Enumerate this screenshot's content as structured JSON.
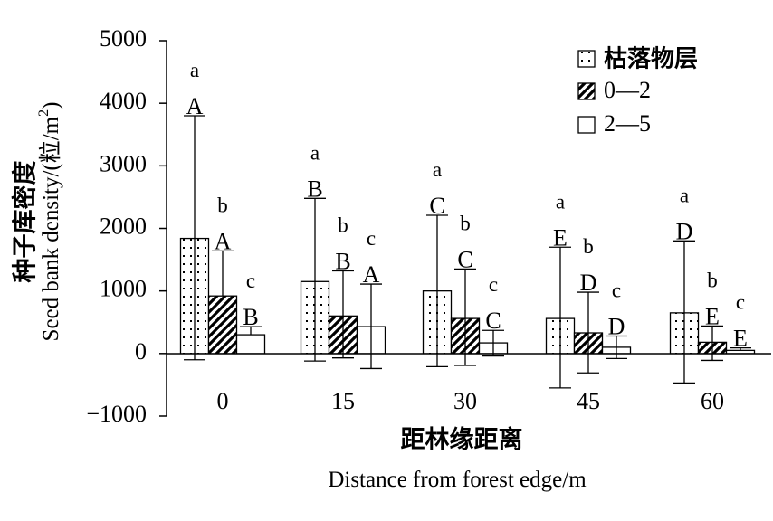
{
  "chart_data": {
    "type": "bar",
    "xlabel_cn": "距林缘距离",
    "xlabel_en": "Distance from forest edge/m",
    "ylabel_cn": "种子库密度",
    "ylabel_en_prefix": "Seed bank density/(粒/m",
    "ylabel_en_sup": "2",
    "ylabel_en_suffix": ")",
    "ylim": [
      -1000,
      5000
    ],
    "yticks": [
      -1000,
      0,
      1000,
      2000,
      3000,
      4000,
      5000
    ],
    "ytick_labels": [
      "−1000",
      "0",
      "1000",
      "2000",
      "3000",
      "4000",
      "5000"
    ],
    "categories": [
      "0",
      "15",
      "30",
      "45",
      "60"
    ],
    "legend_position": "top-right",
    "series": [
      {
        "name": "枯落物层",
        "pattern": "dots",
        "values": [
          1840,
          1150,
          1000,
          560,
          650
        ],
        "error_low": [
          -100,
          -120,
          -210,
          -550,
          -470
        ],
        "error_high": [
          3800,
          2480,
          2210,
          1700,
          1800
        ],
        "group_letters": [
          "a",
          "a",
          "a",
          "a",
          "a"
        ],
        "distance_letters": [
          "A",
          "B",
          "C",
          "E",
          "D"
        ]
      },
      {
        "name": "0—2",
        "pattern": "hatch",
        "values": [
          920,
          600,
          560,
          330,
          180
        ],
        "error_low": [
          null,
          -70,
          -190,
          -310,
          -110
        ],
        "error_high": [
          1640,
          1320,
          1350,
          980,
          440
        ],
        "group_letters": [
          "b",
          "b",
          "b",
          "b",
          "b"
        ],
        "distance_letters": [
          "A",
          "B",
          "C",
          "D",
          "E"
        ]
      },
      {
        "name": "2—5",
        "pattern": "blank",
        "values": [
          300,
          430,
          170,
          100,
          50
        ],
        "error_low": [
          null,
          -240,
          -40,
          -80,
          null
        ],
        "error_high": [
          430,
          1110,
          370,
          280,
          90
        ],
        "group_letters": [
          "c",
          "c",
          "c",
          "c",
          "c"
        ],
        "distance_letters": [
          "B",
          "A",
          "C",
          "D",
          "E"
        ]
      }
    ]
  }
}
